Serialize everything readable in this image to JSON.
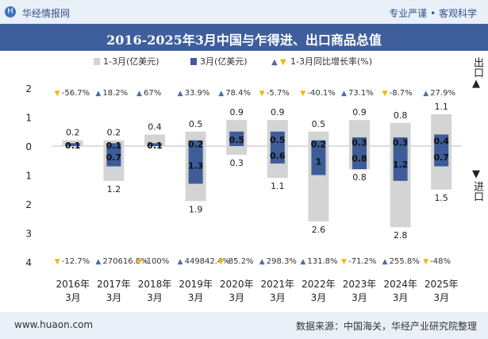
{
  "header": {
    "brand": "华经情报网",
    "slogan": "专业严谨 • 客观科学",
    "logo_icon": "H"
  },
  "title": "2016-2025年3月中国与乍得进、出口商品总值",
  "legend": {
    "item1": "1-3月(亿美元)",
    "item2": "3月(亿美元)",
    "item3": "1-3月同比增长率(%)"
  },
  "side_labels": {
    "export": "出口",
    "import": "进口",
    "export_icon": "▲",
    "import_icon": "▼"
  },
  "footer": {
    "site": "www.huaon.com",
    "source": "数据来源：中国海关，华经产业研究院整理"
  },
  "colors": {
    "cumulative_bar": "#d4d4d4",
    "month_bar": "#3d5c98",
    "up_arrow": "#4a6fa5",
    "down_arrow": "#f2b705",
    "title_bg": "#3f5f9c"
  },
  "chart_data": {
    "type": "bar",
    "categories": [
      "2016年\n3月",
      "2017年\n3月",
      "2018年\n3月",
      "2019年\n3月",
      "2020年\n3月",
      "2021年\n3月",
      "2022年\n3月",
      "2023年\n3月",
      "2024年\n3月",
      "2025年\n3月"
    ],
    "y_ticks_export": [
      "2",
      "1",
      "0"
    ],
    "y_ticks_import": [
      "1",
      "2",
      "3",
      "4"
    ],
    "ylim_export": [
      0,
      2
    ],
    "ylim_import": [
      0,
      4
    ],
    "series": [
      {
        "name": "1-3月(亿美元)",
        "direction": "export",
        "values": [
          0.2,
          0.2,
          0.4,
          0.5,
          0.9,
          0.9,
          0.5,
          0.9,
          0.8,
          1.1
        ],
        "labels": [
          "0.2",
          "0.2",
          "0.4",
          "0.5",
          "0.9",
          "0.9",
          "0.5",
          "0.9",
          "0.8",
          "1.1"
        ]
      },
      {
        "name": "3月(亿美元)",
        "direction": "export",
        "values": [
          0.1,
          0.1,
          0.1,
          0.2,
          0.5,
          0.5,
          0.2,
          0.3,
          0.3,
          0.4
        ],
        "labels": [
          "0.1",
          "0.1",
          "0.1",
          "0.2",
          "0.5",
          "0.5",
          "0.2",
          "0.3",
          "0.3",
          "0.4"
        ]
      },
      {
        "name": "1-3月(亿美元)",
        "direction": "import",
        "values": [
          0,
          1.2,
          0,
          1.9,
          0.3,
          1.1,
          2.6,
          0.8,
          2.8,
          1.5
        ],
        "labels": [
          "",
          "1.2",
          "",
          "1.9",
          "0.3",
          "1.1",
          "2.6",
          "0.8",
          "2.8",
          "1.5"
        ]
      },
      {
        "name": "3月(亿美元)",
        "direction": "import",
        "values": [
          0,
          0.7,
          0,
          1.3,
          0,
          0.6,
          1.0,
          0.8,
          1.2,
          0.7
        ],
        "labels": [
          "",
          "0.7",
          "",
          "1.3",
          "",
          "0.6",
          "1",
          "0.8",
          "1.2",
          "0.7"
        ]
      }
    ],
    "growth_export": [
      {
        "dir": "down",
        "text": "-56.7%"
      },
      {
        "dir": "up",
        "text": "18.2%"
      },
      {
        "dir": "up",
        "text": "67%"
      },
      {
        "dir": "up",
        "text": "33.9%"
      },
      {
        "dir": "up",
        "text": "78.4%"
      },
      {
        "dir": "down",
        "text": "-5.7%"
      },
      {
        "dir": "down",
        "text": "-40.1%"
      },
      {
        "dir": "up",
        "text": "73.1%"
      },
      {
        "dir": "down",
        "text": "-8.7%"
      },
      {
        "dir": "up",
        "text": "27.9%"
      }
    ],
    "growth_import": [
      {
        "dir": "down",
        "text": "-12.7%"
      },
      {
        "dir": "up",
        "text": "270616.8%"
      },
      {
        "dir": "down",
        "text": "-100%"
      },
      {
        "dir": "up",
        "text": "449842.4%"
      },
      {
        "dir": "down",
        "text": "-85.2%"
      },
      {
        "dir": "up",
        "text": "298.3%"
      },
      {
        "dir": "up",
        "text": "131.8%"
      },
      {
        "dir": "down",
        "text": "-71.2%"
      },
      {
        "dir": "up",
        "text": "255.8%"
      },
      {
        "dir": "down",
        "text": "-48%"
      }
    ]
  }
}
